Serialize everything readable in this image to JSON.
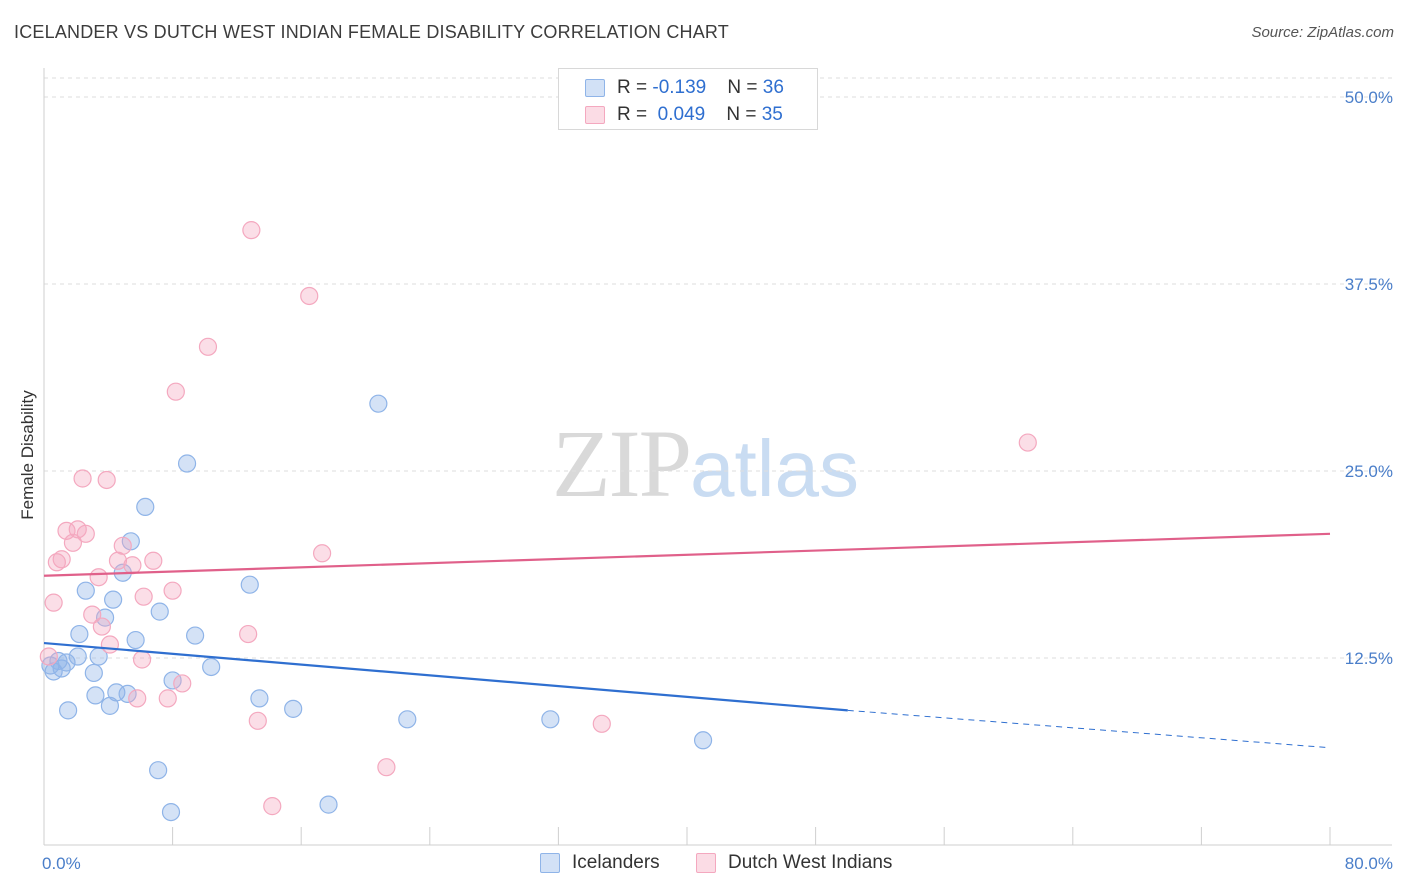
{
  "chart_data": {
    "type": "scatter",
    "title": "ICELANDER VS DUTCH WEST INDIAN FEMALE DISABILITY CORRELATION CHART",
    "source": "Source: ZipAtlas.com",
    "xlabel": "",
    "ylabel": "Female Disability",
    "xlim": [
      0,
      80
    ],
    "ylim": [
      0,
      50
    ],
    "x_tick_labels": [
      "0.0%",
      "80.0%"
    ],
    "y_ticks": [
      12.5,
      25.0,
      37.5,
      50.0
    ],
    "y_tick_labels": [
      "12.5%",
      "25.0%",
      "37.5%",
      "50.0%"
    ],
    "watermark": {
      "zip": "ZIP",
      "atlas": "atlas"
    },
    "legend": {
      "rows": [
        {
          "r_label": "R = ",
          "r_value": "-0.139",
          "n_label": "N = ",
          "n_value": "36"
        },
        {
          "r_label": "R = ",
          "r_value": "0.049",
          "n_label": "N = ",
          "n_value": "35"
        }
      ]
    },
    "series": [
      {
        "name": "Icelanders",
        "color": "#8fb4e8",
        "line_color": "#2f6fd0",
        "trend": {
          "x0": 0,
          "y0": 13.5,
          "x1": 50,
          "y1": 9.0,
          "dash_x1": 80,
          "dash_y1": 6.5
        },
        "points": [
          [
            0.4,
            12.0
          ],
          [
            0.6,
            11.6
          ],
          [
            0.9,
            12.3
          ],
          [
            1.1,
            11.8
          ],
          [
            1.4,
            12.2
          ],
          [
            1.5,
            9.0
          ],
          [
            2.1,
            12.6
          ],
          [
            2.2,
            14.1
          ],
          [
            2.6,
            17.0
          ],
          [
            3.1,
            11.5
          ],
          [
            3.2,
            10.0
          ],
          [
            3.4,
            12.6
          ],
          [
            3.8,
            15.2
          ],
          [
            4.1,
            9.3
          ],
          [
            4.3,
            16.4
          ],
          [
            4.5,
            10.2
          ],
          [
            4.9,
            18.2
          ],
          [
            5.2,
            10.1
          ],
          [
            5.4,
            20.3
          ],
          [
            5.7,
            13.7
          ],
          [
            6.3,
            22.6
          ],
          [
            7.1,
            5.0
          ],
          [
            7.2,
            15.6
          ],
          [
            7.9,
            2.2
          ],
          [
            8.0,
            11.0
          ],
          [
            8.9,
            25.5
          ],
          [
            9.4,
            14.0
          ],
          [
            10.4,
            11.9
          ],
          [
            12.8,
            17.4
          ],
          [
            13.4,
            9.8
          ],
          [
            15.5,
            9.1
          ],
          [
            17.7,
            2.7
          ],
          [
            20.8,
            29.5
          ],
          [
            22.6,
            8.4
          ],
          [
            31.5,
            8.4
          ],
          [
            41.0,
            7.0
          ]
        ]
      },
      {
        "name": "Dutch West Indians",
        "color": "#f4a8bf",
        "line_color": "#e0608a",
        "trend": {
          "x0": 0,
          "y0": 18.0,
          "x1": 80,
          "y1": 20.8
        },
        "points": [
          [
            0.3,
            12.6
          ],
          [
            0.6,
            16.2
          ],
          [
            0.8,
            18.9
          ],
          [
            1.1,
            19.1
          ],
          [
            1.4,
            21.0
          ],
          [
            1.8,
            20.2
          ],
          [
            2.1,
            21.1
          ],
          [
            2.4,
            24.5
          ],
          [
            2.6,
            20.8
          ],
          [
            3.0,
            15.4
          ],
          [
            3.4,
            17.9
          ],
          [
            3.6,
            14.6
          ],
          [
            3.9,
            24.4
          ],
          [
            4.1,
            13.4
          ],
          [
            4.6,
            19.0
          ],
          [
            4.9,
            20.0
          ],
          [
            5.5,
            18.7
          ],
          [
            5.8,
            9.8
          ],
          [
            6.1,
            12.4
          ],
          [
            6.2,
            16.6
          ],
          [
            6.8,
            19.0
          ],
          [
            7.7,
            9.8
          ],
          [
            8.0,
            17.0
          ],
          [
            8.2,
            30.3
          ],
          [
            8.6,
            10.8
          ],
          [
            10.2,
            33.3
          ],
          [
            12.7,
            14.1
          ],
          [
            12.9,
            41.1
          ],
          [
            13.3,
            8.3
          ],
          [
            14.2,
            2.6
          ],
          [
            16.5,
            36.7
          ],
          [
            17.3,
            19.5
          ],
          [
            21.3,
            5.2
          ],
          [
            34.7,
            8.1
          ],
          [
            61.2,
            26.9
          ]
        ]
      }
    ]
  }
}
